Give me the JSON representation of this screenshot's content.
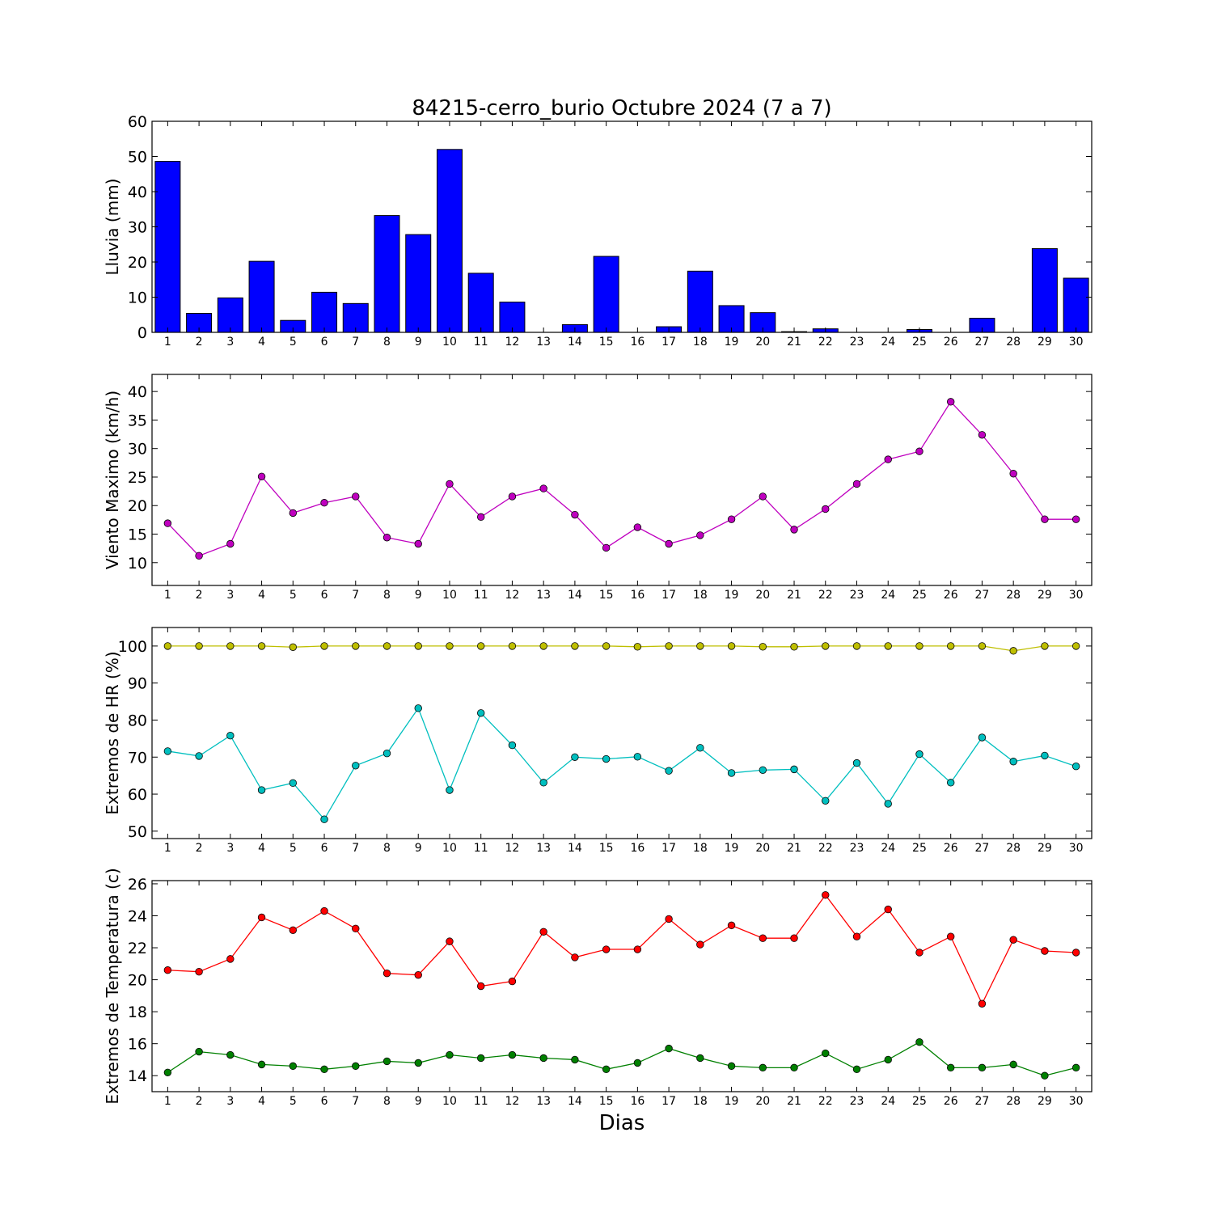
{
  "chart_data": [
    {
      "type": "bar",
      "title": "84215-cerro_burio Octubre 2024  (7 a 7)",
      "ylabel": "Lluvia (mm)",
      "xlabel": "",
      "categories": [
        1,
        2,
        3,
        4,
        5,
        6,
        7,
        8,
        9,
        10,
        11,
        12,
        13,
        14,
        15,
        16,
        17,
        18,
        19,
        20,
        21,
        22,
        23,
        24,
        25,
        26,
        27,
        28,
        29,
        30
      ],
      "values": [
        48.6,
        5.4,
        9.8,
        20.2,
        3.4,
        11.4,
        8.2,
        33.2,
        27.8,
        52.0,
        16.8,
        8.6,
        0,
        2.2,
        21.6,
        0,
        1.6,
        17.4,
        7.6,
        5.6,
        0.2,
        1.0,
        0,
        0,
        0.8,
        0,
        4.0,
        0,
        23.8,
        15.4
      ],
      "ylim": [
        0,
        60
      ],
      "yticks": [
        0,
        10,
        20,
        30,
        40,
        50,
        60
      ],
      "color": "#0000ff"
    },
    {
      "type": "line",
      "ylabel": "Viento Maximo (km/h)",
      "categories": [
        1,
        2,
        3,
        4,
        5,
        6,
        7,
        8,
        9,
        10,
        11,
        12,
        13,
        14,
        15,
        16,
        17,
        18,
        19,
        20,
        21,
        22,
        23,
        24,
        25,
        26,
        27,
        28,
        29,
        30
      ],
      "series": [
        {
          "values": [
            16.9,
            11.2,
            13.3,
            25.1,
            18.7,
            20.5,
            21.6,
            14.4,
            13.3,
            23.8,
            18.0,
            21.6,
            23.0,
            18.4,
            12.6,
            16.2,
            13.3,
            14.8,
            17.6,
            21.6,
            15.8,
            19.4,
            23.8,
            28.1,
            29.5,
            38.2,
            32.4,
            25.6,
            17.6,
            17.6
          ],
          "color": "#bf00bf"
        }
      ],
      "ylim": [
        6,
        43
      ],
      "yticks": [
        10,
        15,
        20,
        25,
        30,
        35,
        40
      ]
    },
    {
      "type": "line",
      "ylabel": "Extremos de HR (%)",
      "categories": [
        1,
        2,
        3,
        4,
        5,
        6,
        7,
        8,
        9,
        10,
        11,
        12,
        13,
        14,
        15,
        16,
        17,
        18,
        19,
        20,
        21,
        22,
        23,
        24,
        25,
        26,
        27,
        28,
        29,
        30
      ],
      "series": [
        {
          "values": [
            100,
            100,
            100,
            100,
            99.7,
            100,
            100,
            100,
            100,
            100,
            100,
            100,
            100,
            100,
            100,
            99.8,
            100,
            100,
            100,
            99.8,
            99.8,
            100,
            100,
            100,
            100,
            100,
            100,
            98.7,
            100,
            100
          ],
          "color": "#bfbf00"
        },
        {
          "values": [
            71.6,
            70.3,
            75.8,
            61.1,
            63.0,
            53.2,
            67.7,
            71.0,
            83.2,
            61.1,
            81.9,
            73.2,
            63.1,
            70.0,
            69.5,
            70.1,
            66.3,
            72.5,
            65.7,
            66.5,
            66.7,
            58.2,
            68.4,
            57.4,
            70.8,
            63.1,
            75.3,
            68.8,
            70.4,
            67.5
          ],
          "color": "#00bfbf"
        }
      ],
      "ylim": [
        48,
        105
      ],
      "yticks": [
        50,
        60,
        70,
        80,
        90,
        100
      ]
    },
    {
      "type": "line",
      "ylabel": "Extremos de Temperatura (c)",
      "xlabel": "Dias",
      "categories": [
        1,
        2,
        3,
        4,
        5,
        6,
        7,
        8,
        9,
        10,
        11,
        12,
        13,
        14,
        15,
        16,
        17,
        18,
        19,
        20,
        21,
        22,
        23,
        24,
        25,
        26,
        27,
        28,
        29,
        30
      ],
      "series": [
        {
          "values": [
            20.6,
            20.5,
            21.3,
            23.9,
            23.1,
            24.3,
            23.2,
            20.4,
            20.3,
            22.4,
            19.6,
            19.9,
            23.0,
            21.4,
            21.9,
            21.9,
            23.8,
            22.2,
            23.4,
            22.6,
            22.6,
            25.3,
            22.7,
            24.4,
            21.7,
            22.7,
            18.5,
            22.5,
            21.8,
            21.7
          ],
          "color": "#ff0000"
        },
        {
          "values": [
            14.2,
            15.5,
            15.3,
            14.7,
            14.6,
            14.4,
            14.6,
            14.9,
            14.8,
            15.3,
            15.1,
            15.3,
            15.1,
            15.0,
            14.4,
            14.8,
            15.7,
            15.1,
            14.6,
            14.5,
            14.5,
            15.4,
            14.4,
            15.0,
            16.1,
            14.5,
            14.5,
            14.7,
            14.0,
            14.5
          ],
          "color": "#008000"
        }
      ],
      "ylim": [
        13,
        26.2
      ],
      "yticks": [
        14,
        16,
        18,
        20,
        22,
        24,
        26
      ]
    }
  ]
}
